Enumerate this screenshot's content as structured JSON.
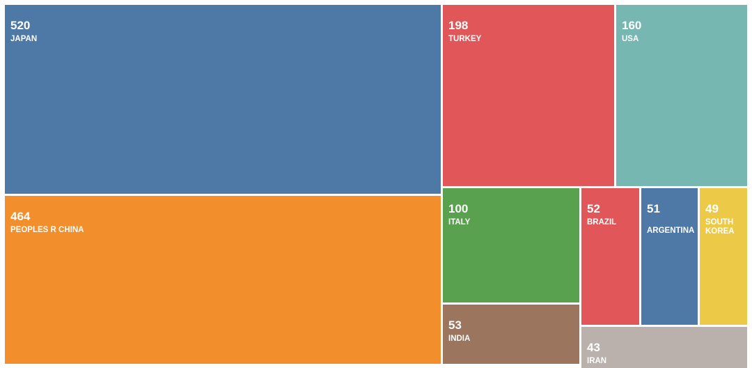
{
  "chart_data": {
    "type": "treemap",
    "items": [
      {
        "label": "JAPAN",
        "value": 520,
        "color": "#4e79a7"
      },
      {
        "label": "PEOPLES R CHINA",
        "value": 464,
        "color": "#f28e2b"
      },
      {
        "label": "TURKEY",
        "value": 198,
        "color": "#e15759"
      },
      {
        "label": "USA",
        "value": 160,
        "color": "#76b7b2"
      },
      {
        "label": "ITALY",
        "value": 100,
        "color": "#59a14f"
      },
      {
        "label": "INDIA",
        "value": 53,
        "color": "#9c755f"
      },
      {
        "label": "BRAZIL",
        "value": 52,
        "color": "#e15759"
      },
      {
        "label": "ARGENTINA",
        "value": 51,
        "color": "#4e79a7"
      },
      {
        "label": "SOUTH KOREA",
        "value": 49,
        "color": "#edc948"
      },
      {
        "label": "IRAN",
        "value": 43,
        "color": "#bab0ac"
      }
    ]
  }
}
